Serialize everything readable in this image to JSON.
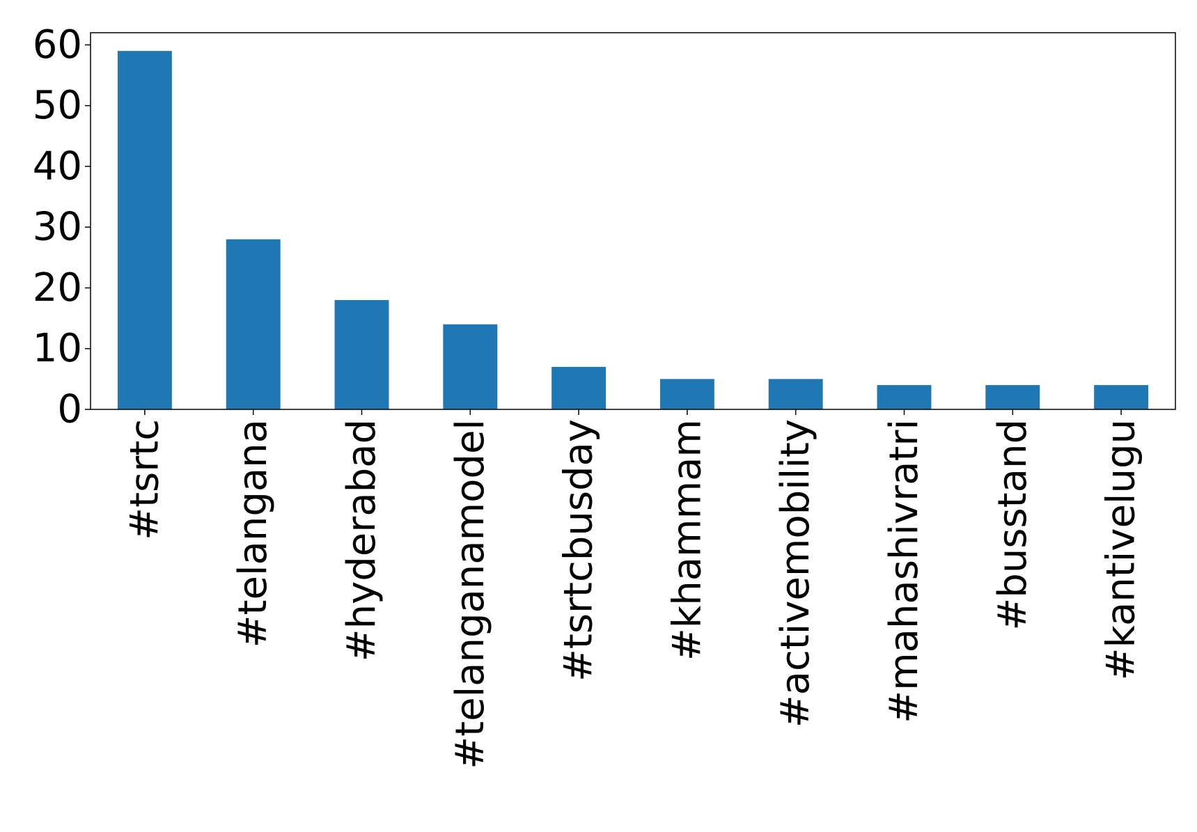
{
  "chart_data": {
    "type": "bar",
    "categories": [
      "#tsrtc",
      "#telangana",
      "#hyderabad",
      "#telanganamodel",
      "#tsrtcbusday",
      "#khammam",
      "#activemobility",
      "#mahashivratri",
      "#busstand",
      "#kantivelugu"
    ],
    "values": [
      59,
      28,
      18,
      14,
      7,
      5,
      5,
      4,
      4,
      4
    ],
    "title": "",
    "xlabel": "",
    "ylabel": "",
    "ylim": [
      0,
      62
    ],
    "yticks": [
      0,
      10,
      20,
      30,
      40,
      50,
      60
    ],
    "grid": false,
    "bar_color": "#1f77b4"
  }
}
